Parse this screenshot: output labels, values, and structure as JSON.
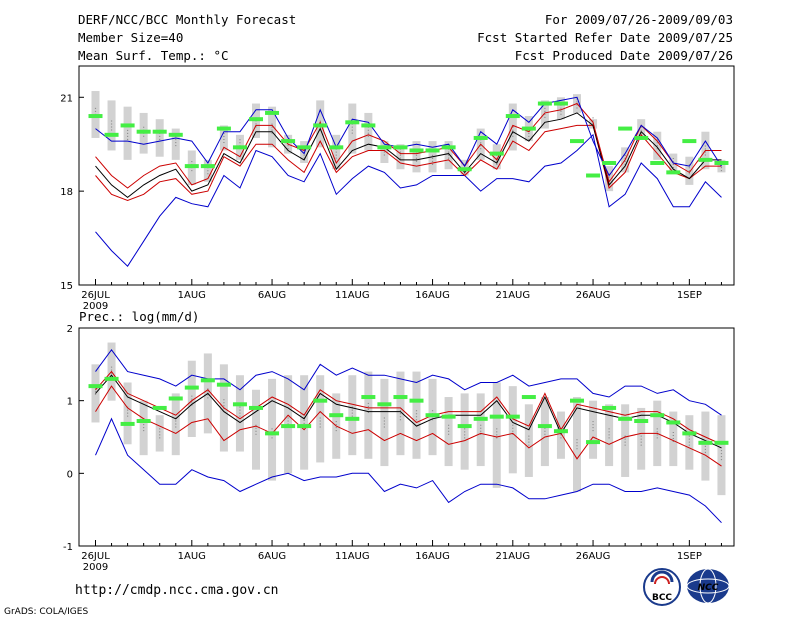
{
  "header": {
    "title": "DERF/NCC/BCC Monthly Forecast",
    "member_size": "Member Size=40",
    "variable": "Mean Surf. Temp.: °C",
    "period": "For 2009/07/26-2009/09/03",
    "refer_date": "Fcst Started Refer Date 2009/07/25",
    "produced_date": "Fcst Produced Date 2009/07/26"
  },
  "footer": {
    "url": "http://cmdp.ncc.cma.gov.cn",
    "credit": "GrADS: COLA/IGES",
    "logo_bcc": "BCC",
    "logo_ncc": "NCC"
  },
  "colors": {
    "ensemble_mean": "#000000",
    "ensemble_spread": "#cc0000",
    "ensemble_range": "#0000cc",
    "member_box": "#d2d2d2",
    "member_median_dot": "#888888",
    "control": "#44ee44"
  },
  "chart_data": [
    {
      "type": "line",
      "title": "Mean Surf. Temp.: °C",
      "ylim": [
        15,
        22
      ],
      "yticks": [
        "15",
        "18",
        "21"
      ],
      "ytick_values": [
        15,
        18,
        21
      ],
      "xtick_labels": [
        "26JUL",
        "1AUG",
        "6AUG",
        "11AUG",
        "16AUG",
        "21AUG",
        "26AUG",
        "1SEP"
      ],
      "xtick_days": [
        0,
        6,
        11,
        16,
        21,
        26,
        31,
        37
      ],
      "year_label": "2009",
      "x": [
        0,
        1,
        2,
        3,
        4,
        5,
        6,
        7,
        8,
        9,
        10,
        11,
        12,
        13,
        14,
        15,
        16,
        17,
        18,
        19,
        20,
        21,
        22,
        23,
        24,
        25,
        26,
        27,
        28,
        29,
        30,
        31,
        32,
        33,
        34,
        35,
        36,
        37,
        38,
        39
      ],
      "series": [
        {
          "name": "max",
          "values": [
            16.7,
            16.1,
            15.6,
            16.4,
            17.2,
            17.8,
            17.6,
            17.5,
            18.5,
            18.1,
            19.3,
            19.1,
            18.5,
            18.3,
            19.2,
            17.9,
            18.4,
            18.8,
            18.6,
            18.1,
            18.2,
            18.5,
            18.5,
            18.5,
            18.0,
            18.4,
            18.4,
            18.3,
            18.8,
            18.9,
            19.3,
            19.8,
            17.5,
            17.9,
            18.9,
            18.4,
            17.5,
            17.5,
            18.3,
            17.8
          ]
        },
        {
          "name": "mean - sd",
          "values": [
            18.5,
            17.9,
            17.7,
            17.9,
            18.3,
            18.4,
            17.9,
            18.0,
            19.1,
            18.8,
            19.5,
            19.5,
            19.0,
            18.6,
            19.6,
            18.6,
            19.1,
            19.3,
            19.3,
            18.9,
            18.8,
            18.9,
            19.0,
            18.5,
            19.0,
            18.7,
            19.6,
            19.3,
            19.9,
            20.0,
            20.1,
            20.1,
            18.1,
            18.6,
            19.8,
            19.2,
            18.6,
            18.4,
            18.8,
            18.8
          ]
        },
        {
          "name": "mean",
          "values": [
            18.8,
            18.2,
            17.8,
            18.2,
            18.5,
            18.7,
            18.0,
            18.2,
            19.2,
            18.9,
            19.9,
            19.9,
            19.3,
            19.0,
            20.0,
            18.7,
            19.3,
            19.5,
            19.4,
            19.0,
            19.0,
            19.1,
            19.2,
            18.6,
            19.2,
            18.9,
            19.9,
            19.6,
            20.2,
            20.3,
            20.5,
            20.1,
            18.2,
            18.8,
            19.9,
            19.4,
            18.7,
            18.4,
            19.0,
            19.0
          ]
        },
        {
          "name": "mean + sd",
          "values": [
            19.1,
            18.5,
            18.1,
            18.5,
            18.8,
            18.9,
            18.2,
            18.4,
            19.4,
            19.1,
            20.1,
            20.1,
            19.5,
            19.3,
            20.2,
            18.9,
            19.6,
            19.8,
            19.6,
            19.2,
            19.2,
            19.3,
            19.4,
            18.8,
            19.5,
            19.0,
            20.1,
            19.9,
            20.5,
            20.6,
            20.8,
            20.2,
            18.3,
            19.0,
            20.1,
            19.6,
            18.9,
            18.6,
            19.3,
            19.3
          ]
        },
        {
          "name": "min",
          "values": [
            20.0,
            19.6,
            19.6,
            19.5,
            19.6,
            19.7,
            19.6,
            18.9,
            19.9,
            19.9,
            20.6,
            20.6,
            19.7,
            19.2,
            20.6,
            19.4,
            20.3,
            20.2,
            19.5,
            19.4,
            19.5,
            19.4,
            19.5,
            18.8,
            19.9,
            19.5,
            20.6,
            20.2,
            20.8,
            20.9,
            21.0,
            19.6,
            18.5,
            19.2,
            20.1,
            19.7,
            18.9,
            18.8,
            19.6,
            18.8
          ]
        }
      ],
      "boxes": {
        "low": [
          19.7,
          19.3,
          19.0,
          19.2,
          19.1,
          19.0,
          18.2,
          18.3,
          19.3,
          19.0,
          19.7,
          19.4,
          19.2,
          18.9,
          19.4,
          18.7,
          19.2,
          19.3,
          18.9,
          18.7,
          18.6,
          18.6,
          18.7,
          18.5,
          19.0,
          18.7,
          19.3,
          19.6,
          20.0,
          20.3,
          20.5,
          20.0,
          18.0,
          18.6,
          19.7,
          19.0,
          18.6,
          18.2,
          18.7,
          18.6
        ],
        "high": [
          21.2,
          20.9,
          20.7,
          20.5,
          20.3,
          20.0,
          19.3,
          19.0,
          20.1,
          19.8,
          20.8,
          20.7,
          19.8,
          19.6,
          20.9,
          19.8,
          20.8,
          20.5,
          19.6,
          19.5,
          19.6,
          19.6,
          19.6,
          19.0,
          20.0,
          19.5,
          20.8,
          20.4,
          20.9,
          21.0,
          21.1,
          20.3,
          18.8,
          19.4,
          20.3,
          19.9,
          19.2,
          19.1,
          19.9,
          19.0
        ],
        "median": [
          20.5,
          20.1,
          19.8,
          19.9,
          19.8,
          19.6,
          18.8,
          18.7,
          19.7,
          19.5,
          20.2,
          20.0,
          19.5,
          19.2,
          20.1,
          19.2,
          20.0,
          19.9,
          19.3,
          19.2,
          19.1,
          19.0,
          19.2,
          18.7,
          19.5,
          19.0,
          19.9,
          19.8,
          20.5,
          20.6,
          20.8,
          20.2,
          18.4,
          19.0,
          19.9,
          19.5,
          18.9,
          18.7,
          19.3,
          18.8
        ]
      },
      "control": [
        20.4,
        19.8,
        20.1,
        19.9,
        19.9,
        19.8,
        18.8,
        18.8,
        20.0,
        19.4,
        20.3,
        20.5,
        19.6,
        19.4,
        20.1,
        19.4,
        20.2,
        20.1,
        19.4,
        19.4,
        19.3,
        19.3,
        19.4,
        18.7,
        19.7,
        19.2,
        20.4,
        20.0,
        20.8,
        20.8,
        19.6,
        18.5,
        18.9,
        20.0,
        19.7,
        18.9,
        18.6,
        19.6,
        19.0,
        18.9
      ]
    },
    {
      "type": "line",
      "title": "Prec.: log(mm/d)",
      "ylim": [
        -1,
        2
      ],
      "yticks": [
        "-1",
        "0",
        "1",
        "2"
      ],
      "ytick_values": [
        -1,
        0,
        1,
        2
      ],
      "xtick_labels": [
        "26JUL",
        "1AUG",
        "6AUG",
        "11AUG",
        "16AUG",
        "21AUG",
        "26AUG",
        "1SEP"
      ],
      "xtick_days": [
        0,
        6,
        11,
        16,
        21,
        26,
        31,
        37
      ],
      "year_label": "2009",
      "x": [
        0,
        1,
        2,
        3,
        4,
        5,
        6,
        7,
        8,
        9,
        10,
        11,
        12,
        13,
        14,
        15,
        16,
        17,
        18,
        19,
        20,
        21,
        22,
        23,
        24,
        25,
        26,
        27,
        28,
        29,
        30,
        31,
        32,
        33,
        34,
        35,
        36,
        37,
        38,
        39
      ],
      "series": [
        {
          "name": "min",
          "values": [
            0.25,
            0.75,
            0.25,
            0.05,
            -0.15,
            -0.15,
            0.05,
            -0.05,
            -0.1,
            -0.25,
            -0.15,
            -0.05,
            0.0,
            -0.1,
            -0.05,
            -0.05,
            0.0,
            0.0,
            -0.25,
            -0.15,
            -0.2,
            -0.1,
            -0.4,
            -0.25,
            -0.15,
            -0.15,
            -0.2,
            -0.35,
            -0.35,
            -0.3,
            -0.25,
            -0.15,
            -0.15,
            -0.25,
            -0.25,
            -0.2,
            -0.25,
            -0.3,
            -0.45,
            -0.68
          ]
        },
        {
          "name": "mean - sd",
          "values": [
            0.85,
            1.2,
            0.9,
            0.75,
            0.65,
            0.55,
            0.7,
            0.75,
            0.45,
            0.6,
            0.65,
            0.55,
            0.8,
            0.6,
            0.85,
            0.65,
            0.55,
            0.6,
            0.45,
            0.55,
            0.45,
            0.55,
            0.4,
            0.45,
            0.55,
            0.5,
            0.55,
            0.35,
            0.5,
            0.55,
            0.2,
            0.5,
            0.4,
            0.5,
            0.55,
            0.55,
            0.45,
            0.35,
            0.25,
            0.1
          ]
        },
        {
          "name": "mean",
          "values": [
            1.1,
            1.35,
            1.05,
            0.95,
            0.85,
            0.75,
            0.95,
            1.1,
            0.85,
            0.7,
            0.85,
            1.0,
            0.9,
            0.75,
            1.1,
            0.95,
            0.9,
            0.85,
            0.85,
            0.85,
            0.65,
            0.75,
            0.8,
            0.8,
            0.8,
            1.0,
            0.7,
            0.6,
            1.05,
            0.55,
            0.9,
            0.85,
            0.8,
            0.75,
            0.8,
            0.8,
            0.7,
            0.55,
            0.45,
            0.35
          ]
        },
        {
          "name": "mean + sd",
          "values": [
            1.15,
            1.4,
            1.1,
            1.0,
            0.9,
            0.8,
            1.0,
            1.15,
            0.9,
            0.75,
            0.9,
            1.05,
            0.95,
            0.8,
            1.15,
            1.0,
            0.95,
            0.9,
            0.9,
            0.9,
            0.7,
            0.8,
            0.85,
            0.85,
            0.85,
            1.05,
            0.75,
            0.65,
            1.1,
            0.6,
            0.95,
            0.9,
            0.85,
            0.8,
            0.85,
            0.85,
            0.75,
            0.6,
            0.5,
            0.4
          ]
        },
        {
          "name": "max",
          "values": [
            1.4,
            1.7,
            1.4,
            1.35,
            1.3,
            1.2,
            1.35,
            1.3,
            1.3,
            1.15,
            1.35,
            1.4,
            1.3,
            1.15,
            1.5,
            1.35,
            1.45,
            1.35,
            1.35,
            1.3,
            1.25,
            1.35,
            1.3,
            1.15,
            1.25,
            1.25,
            1.35,
            1.2,
            1.25,
            1.3,
            1.3,
            1.1,
            1.05,
            1.2,
            1.2,
            1.1,
            1.15,
            1.0,
            0.95,
            0.8
          ]
        }
      ],
      "boxes": {
        "low": [
          0.7,
          1.0,
          0.4,
          0.25,
          0.3,
          0.25,
          0.5,
          0.55,
          0.3,
          0.3,
          0.05,
          -0.1,
          0.0,
          0.05,
          0.15,
          0.2,
          0.25,
          0.2,
          0.1,
          0.25,
          0.2,
          0.25,
          0.1,
          0.05,
          0.1,
          -0.2,
          0.0,
          -0.05,
          0.1,
          0.2,
          -0.25,
          0.2,
          0.1,
          -0.05,
          0.05,
          0.1,
          0.1,
          0.05,
          -0.1,
          -0.3
        ],
        "high": [
          1.5,
          1.8,
          1.25,
          1.0,
          0.8,
          1.1,
          1.55,
          1.65,
          1.5,
          1.35,
          1.15,
          1.3,
          1.35,
          1.35,
          1.35,
          1.1,
          1.35,
          1.4,
          1.3,
          1.4,
          1.4,
          1.3,
          1.05,
          1.1,
          1.1,
          1.25,
          1.2,
          0.95,
          1.05,
          0.85,
          1.05,
          1.0,
          0.95,
          0.95,
          0.9,
          1.0,
          0.85,
          0.8,
          0.85,
          0.8
        ],
        "median": [
          1.15,
          1.4,
          0.85,
          0.65,
          0.55,
          0.7,
          1.0,
          1.1,
          0.95,
          0.85,
          0.6,
          0.55,
          0.7,
          0.75,
          0.7,
          0.65,
          0.85,
          0.9,
          0.7,
          0.8,
          0.8,
          0.8,
          0.6,
          0.55,
          0.6,
          0.55,
          0.6,
          0.45,
          0.6,
          0.55,
          0.4,
          0.65,
          0.55,
          0.45,
          0.45,
          0.55,
          0.5,
          0.45,
          0.35,
          0.25
        ]
      },
      "control": [
        1.2,
        1.3,
        0.68,
        0.72,
        0.9,
        1.03,
        1.18,
        1.28,
        1.22,
        0.95,
        0.9,
        0.55,
        0.65,
        0.65,
        1.0,
        0.8,
        0.75,
        1.05,
        0.95,
        1.05,
        1.0,
        0.8,
        0.78,
        0.65,
        0.75,
        0.78,
        0.78,
        1.05,
        0.65,
        0.58,
        1.0,
        0.43,
        0.9,
        0.75,
        0.72,
        0.8,
        0.7,
        0.55,
        0.42,
        0.42
      ]
    }
  ]
}
